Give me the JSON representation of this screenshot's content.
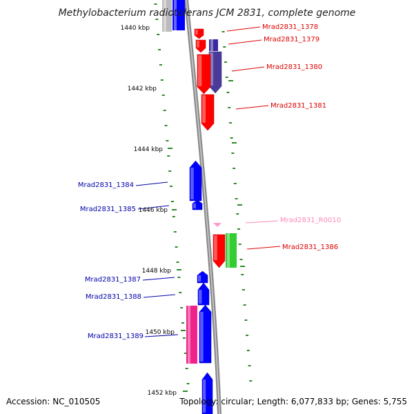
{
  "title": "Methylobacterium radiotolerans JCM 2831, complete genome",
  "footer": {
    "accession": "Accession: NC_010505",
    "topology": "Topology: circular; Length: 6,077,833 bp; Genes: 5,755"
  },
  "colors": {
    "backbone": "#8a8a8a",
    "dots": "#2a8a2a",
    "forward_label": "#dd0000",
    "reverse_label": "#0000aa",
    "rna_label": "#ff88bb"
  },
  "kbp_ticks": [
    {
      "label": "1440 kbp"
    },
    {
      "label": "1442 kbp"
    },
    {
      "label": "1444 kbp"
    },
    {
      "label": "1446 kbp"
    },
    {
      "label": "1448 kbp"
    },
    {
      "label": "1450 kbp"
    },
    {
      "label": "1452 kbp"
    }
  ],
  "genes": [
    {
      "id": "Mrad2831_1378",
      "color": "#ff0000"
    },
    {
      "id": "Mrad2831_1379",
      "color": "#ff0000"
    },
    {
      "id": "Mrad2831_1380",
      "color": "#ff0000"
    },
    {
      "id": "Mrad2831_1381",
      "color": "#ff0000"
    },
    {
      "id": "Mrad2831_1384",
      "color": "#0000ff"
    },
    {
      "id": "Mrad2831_1385",
      "color": "#0000ff"
    },
    {
      "id": "Mrad2831_R0010",
      "color": "#ff99cc"
    },
    {
      "id": "Mrad2831_1386",
      "color": "#ff0000"
    },
    {
      "id": "Mrad2831_1387",
      "color": "#0000ff"
    },
    {
      "id": "Mrad2831_1388",
      "color": "#0000ff"
    },
    {
      "id": "Mrad2831_1389",
      "color": "#0000ff"
    }
  ]
}
